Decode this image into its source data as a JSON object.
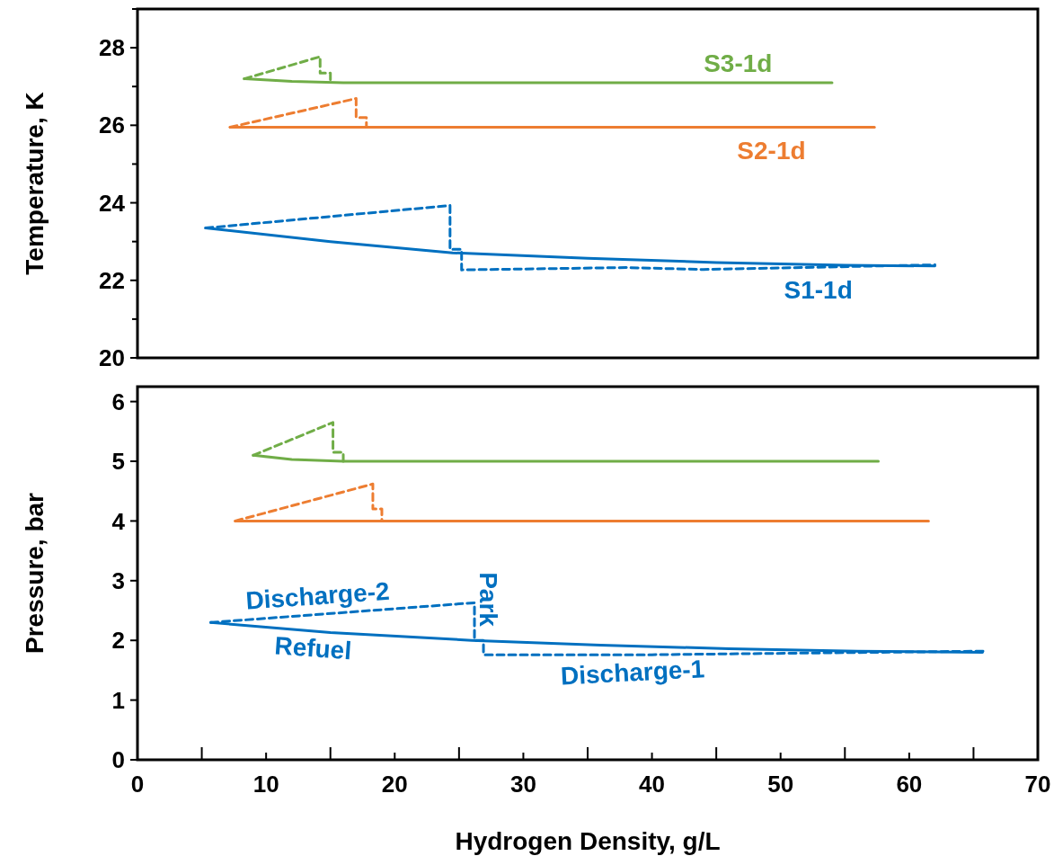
{
  "chart_data": [
    {
      "type": "line",
      "ylabel": "Temperature, K",
      "xlim": [
        0,
        70
      ],
      "ylim": [
        20,
        29
      ],
      "yticks": [
        20,
        {
          "value": 21,
          "label": null
        },
        22,
        {
          "value": 23,
          "label": null
        },
        24,
        {
          "value": 25,
          "label": null
        },
        26,
        {
          "value": 27,
          "label": null
        },
        28,
        {
          "value": 29,
          "label": null
        }
      ],
      "tick_labels": "y",
      "series": [
        {
          "name": "S3-1d",
          "color": "#70ad47",
          "line_style": "solid",
          "x": [
            8.3,
            12,
            16,
            30,
            54
          ],
          "values": [
            27.2,
            27.13,
            27.1,
            27.1,
            27.1
          ]
        },
        {
          "color": "#70ad47",
          "line_style": "dashed",
          "x": [
            8.3,
            14.2,
            14.2,
            15,
            15
          ],
          "values": [
            27.2,
            27.77,
            27.35,
            27.35,
            27.1
          ]
        },
        {
          "name": "S2-1d",
          "color": "#ed7d31",
          "line_style": "solid",
          "x": [
            7.2,
            30,
            57.3
          ],
          "values": [
            25.95,
            25.95,
            25.95
          ]
        },
        {
          "color": "#ed7d31",
          "line_style": "dashed",
          "x": [
            7.2,
            17,
            17,
            17.8,
            17.8
          ],
          "values": [
            25.95,
            26.69,
            26.2,
            26.2,
            25.95
          ]
        },
        {
          "name": "S1-1d",
          "color": "#0070c0",
          "line_style": "solid",
          "x": [
            5.3,
            15,
            24.5,
            35,
            45,
            55,
            62
          ],
          "values": [
            23.35,
            23.0,
            22.71,
            22.57,
            22.46,
            22.39,
            22.37
          ]
        },
        {
          "color": "#0070c0",
          "line_style": "dashed",
          "x": [
            5.3,
            24.3,
            24.3,
            25.2,
            25.2,
            38,
            44,
            62
          ],
          "values": [
            23.35,
            23.93,
            22.8,
            22.8,
            22.27,
            22.33,
            22.28,
            22.4
          ]
        }
      ]
    },
    {
      "type": "line",
      "xlabel": "Hydrogen Density, g/L",
      "ylabel": "Pressure, bar",
      "xlim": [
        0,
        70
      ],
      "ylim": [
        0,
        6.25
      ],
      "xticks": [
        0,
        {
          "value": 5,
          "label": null
        },
        10,
        {
          "value": 15,
          "label": null
        },
        20,
        {
          "value": 25,
          "label": null
        },
        30,
        {
          "value": 35,
          "label": null
        },
        40,
        {
          "value": 45,
          "label": null
        },
        50,
        {
          "value": 55,
          "label": null
        },
        60,
        {
          "value": 65,
          "label": null
        },
        70
      ],
      "yticks": [
        0,
        1,
        2,
        3,
        4,
        5,
        6
      ],
      "series": [
        {
          "color": "#70ad47",
          "line_style": "solid",
          "x": [
            9,
            12,
            16,
            35,
            57.6
          ],
          "values": [
            5.1,
            5.03,
            5.0,
            5.0,
            5.0
          ]
        },
        {
          "color": "#70ad47",
          "line_style": "dashed",
          "x": [
            9,
            15.2,
            15.2,
            16,
            16
          ],
          "values": [
            5.1,
            5.65,
            5.15,
            5.15,
            5.0
          ]
        },
        {
          "color": "#ed7d31",
          "line_style": "solid",
          "x": [
            7.6,
            35,
            61.5
          ],
          "values": [
            4.0,
            4.0,
            4.0
          ]
        },
        {
          "color": "#ed7d31",
          "line_style": "dashed",
          "x": [
            7.6,
            18.3,
            18.3,
            19,
            19
          ],
          "values": [
            4.0,
            4.62,
            4.2,
            4.2,
            4.0
          ]
        },
        {
          "color": "#0070c0",
          "line_style": "solid",
          "x": [
            5.7,
            15,
            26,
            36,
            46,
            56,
            65.7
          ],
          "values": [
            2.3,
            2.13,
            2.0,
            1.92,
            1.86,
            1.82,
            1.8
          ]
        },
        {
          "color": "#0070c0",
          "line_style": "dashed",
          "x": [
            5.7,
            26.2,
            26.2,
            26.9,
            26.9,
            40,
            66
          ],
          "values": [
            2.3,
            2.63,
            2.0,
            2.0,
            1.76,
            1.76,
            1.82
          ]
        }
      ],
      "annotations": [
        "Discharge-2",
        "Refuel",
        "Park",
        "Discharge-1"
      ]
    }
  ]
}
